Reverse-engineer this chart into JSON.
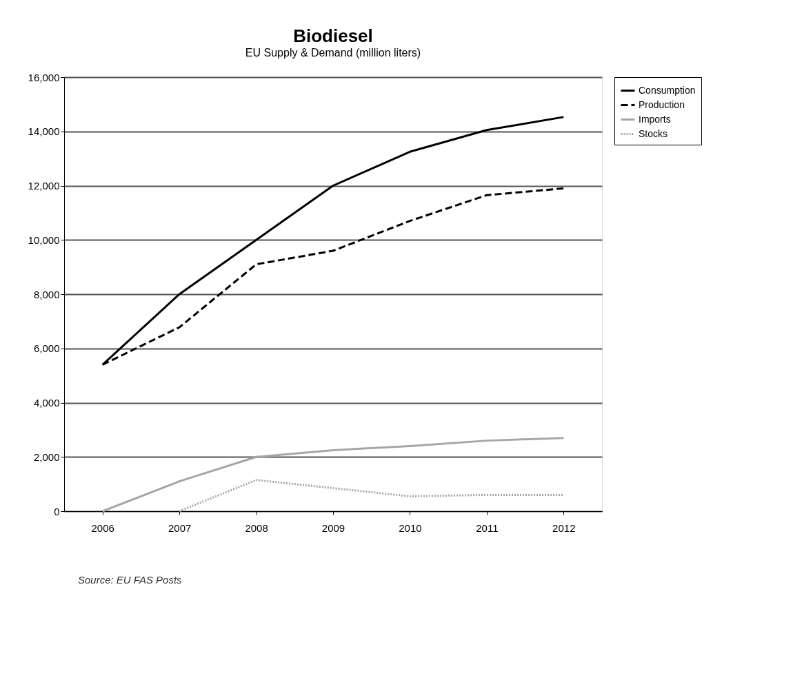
{
  "chart_data": {
    "type": "line",
    "title": "Biodiesel",
    "subtitle": "EU Supply & Demand (million liters)",
    "categories": [
      "2006",
      "2007",
      "2008",
      "2009",
      "2010",
      "2011",
      "2012"
    ],
    "series": [
      {
        "name": "Consumption",
        "color": "#000000",
        "line_style": "solid",
        "values": [
          5400,
          8000,
          10000,
          12000,
          13250,
          14050,
          14530
        ]
      },
      {
        "name": "Production",
        "color": "#000000",
        "line_style": "dashed",
        "values": [
          5400,
          6780,
          9100,
          9600,
          10700,
          11650,
          11900
        ]
      },
      {
        "name": "Imports",
        "color": "#a6a6a6",
        "line_style": "solid",
        "values": [
          0,
          1100,
          2000,
          2250,
          2400,
          2600,
          2700
        ]
      },
      {
        "name": "Stocks",
        "color": "#a6a6a6",
        "line_style": "dotted",
        "values": [
          null,
          0,
          1150,
          850,
          550,
          600,
          600
        ]
      }
    ],
    "ylim": [
      0,
      16000
    ],
    "yticks": [
      0,
      {
        "value": 2000,
        "label": "2,000"
      },
      {
        "value": 4000,
        "label": "4,000"
      },
      {
        "value": 6000,
        "label": "6,000"
      },
      {
        "value": 8000,
        "label": "8,000"
      },
      {
        "value": 10000,
        "label": "10,000"
      },
      {
        "value": 12000,
        "label": "12,000"
      },
      {
        "value": 14000,
        "label": "14,000"
      },
      {
        "value": 16000,
        "label": "16,000"
      }
    ],
    "grid": "y",
    "legend": "right",
    "marker": "none",
    "annotations": [
      "Source: EU FAS Posts"
    ]
  }
}
